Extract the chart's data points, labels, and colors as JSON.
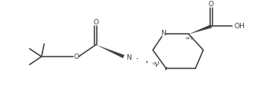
{
  "bg_color": "#ffffff",
  "line_color": "#404040",
  "text_color": "#404040",
  "lw": 1.15,
  "fs": 6.5,
  "fs_small": 4.5,
  "fig_w": 3.38,
  "fig_h": 1.26,
  "dpi": 100,
  "xlim": [
    0,
    100
  ],
  "ylim": [
    0,
    37
  ]
}
